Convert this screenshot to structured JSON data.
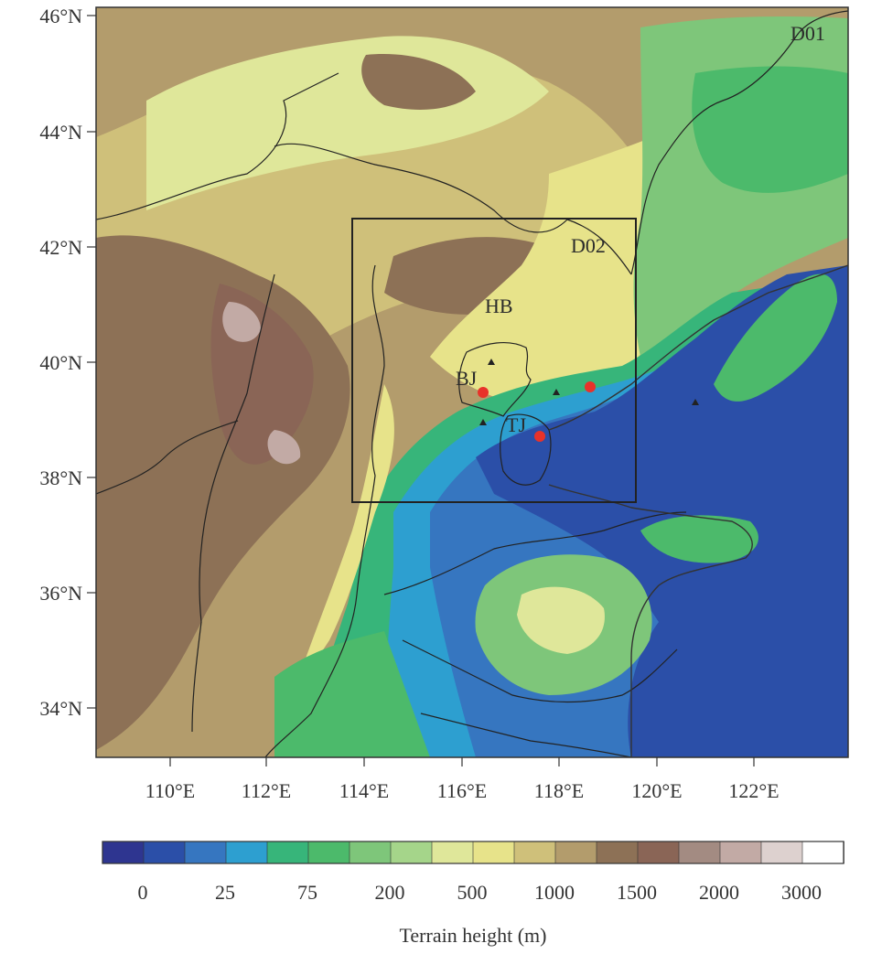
{
  "lat_ticks": [
    "46°N",
    "44°N",
    "42°N",
    "40°N",
    "38°N",
    "36°N",
    "34°N"
  ],
  "lon_ticks": [
    "110°E",
    "112°E",
    "114°E",
    "116°E",
    "118°E",
    "120°E",
    "122°E"
  ],
  "domain_labels": {
    "outer": "D01",
    "inner": "D02"
  },
  "region_labels": {
    "hebei": "HB",
    "beijing": "BJ",
    "tianjin": "TJ"
  },
  "colorbar": {
    "colors": [
      "#2e3590",
      "#2b4fa8",
      "#3676c0",
      "#2d9fd0",
      "#37b57a",
      "#4cba6b",
      "#7ec67a",
      "#a5d58a",
      "#dfe79a",
      "#e7e38a",
      "#cfc07a",
      "#b39c6c",
      "#8d7156",
      "#8a6556",
      "#a38b82",
      "#c2aaa5",
      "#ddd1cf",
      "#ffffff"
    ],
    "tick_labels": [
      "0",
      "25",
      "75",
      "200",
      "500",
      "1000",
      "1500",
      "2000",
      "3000"
    ],
    "title": "Terrain height (m)"
  },
  "markers": {
    "red_sites": 3,
    "black_triangles": 4
  }
}
